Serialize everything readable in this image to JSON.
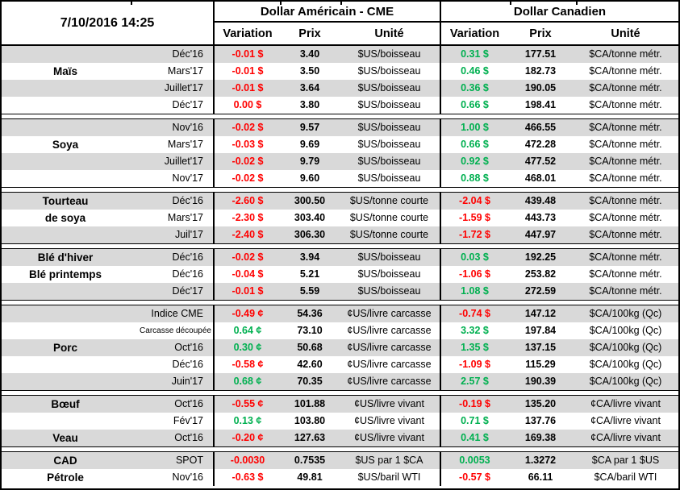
{
  "colors": {
    "negative": "#ff0000",
    "positive": "#00b050",
    "stripe": "#d9d9d9"
  },
  "chart_data": {
    "type": "table",
    "timestamp": "7/10/2016 14:25",
    "section_us": "Dollar Américain - CME",
    "section_ca": "Dollar Canadien",
    "columns": {
      "variation": "Variation",
      "prix": "Prix",
      "unite": "Unité"
    },
    "groups": [
      {
        "id": "mais",
        "rows": [
          {
            "label": "",
            "month": "Déc'16",
            "us_var": "-0.01 $",
            "us_sign": "neg",
            "us_prix": "3.40",
            "us_unit": "$US/boisseau",
            "ca_var": "0.31 $",
            "ca_sign": "pos",
            "ca_prix": "177.51",
            "ca_unit": "$CA/tonne métr."
          },
          {
            "label": "Maïs",
            "month": "Mars'17",
            "us_var": "-0.01 $",
            "us_sign": "neg",
            "us_prix": "3.50",
            "us_unit": "$US/boisseau",
            "ca_var": "0.46 $",
            "ca_sign": "pos",
            "ca_prix": "182.73",
            "ca_unit": "$CA/tonne métr."
          },
          {
            "label": "",
            "month": "Juillet'17",
            "us_var": "-0.01 $",
            "us_sign": "neg",
            "us_prix": "3.64",
            "us_unit": "$US/boisseau",
            "ca_var": "0.36 $",
            "ca_sign": "pos",
            "ca_prix": "190.05",
            "ca_unit": "$CA/tonne métr."
          },
          {
            "label": "",
            "month": "Déc'17",
            "us_var": "0.00 $",
            "us_sign": "neg",
            "us_prix": "3.80",
            "us_unit": "$US/boisseau",
            "ca_var": "0.66 $",
            "ca_sign": "pos",
            "ca_prix": "198.41",
            "ca_unit": "$CA/tonne métr."
          }
        ]
      },
      {
        "id": "soya",
        "rows": [
          {
            "label": "",
            "month": "Nov'16",
            "us_var": "-0.02 $",
            "us_sign": "neg",
            "us_prix": "9.57",
            "us_unit": "$US/boisseau",
            "ca_var": "1.00 $",
            "ca_sign": "pos",
            "ca_prix": "466.55",
            "ca_unit": "$CA/tonne métr."
          },
          {
            "label": "Soya",
            "month": "Mars'17",
            "us_var": "-0.03 $",
            "us_sign": "neg",
            "us_prix": "9.69",
            "us_unit": "$US/boisseau",
            "ca_var": "0.66 $",
            "ca_sign": "pos",
            "ca_prix": "472.28",
            "ca_unit": "$CA/tonne métr."
          },
          {
            "label": "",
            "month": "Juillet'17",
            "us_var": "-0.02 $",
            "us_sign": "neg",
            "us_prix": "9.79",
            "us_unit": "$US/boisseau",
            "ca_var": "0.92 $",
            "ca_sign": "pos",
            "ca_prix": "477.52",
            "ca_unit": "$CA/tonne métr."
          },
          {
            "label": "",
            "month": "Nov'17",
            "us_var": "-0.02 $",
            "us_sign": "neg",
            "us_prix": "9.60",
            "us_unit": "$US/boisseau",
            "ca_var": "0.88 $",
            "ca_sign": "pos",
            "ca_prix": "468.01",
            "ca_unit": "$CA/tonne métr."
          }
        ]
      },
      {
        "id": "tourteau-de-soya",
        "rows": [
          {
            "label": "Tourteau",
            "month": "Déc'16",
            "us_var": "-2.60 $",
            "us_sign": "neg",
            "us_prix": "300.50",
            "us_unit": "$US/tonne courte",
            "ca_var": "-2.04 $",
            "ca_sign": "neg",
            "ca_prix": "439.48",
            "ca_unit": "$CA/tonne métr."
          },
          {
            "label": "de soya",
            "month": "Mars'17",
            "us_var": "-2.30 $",
            "us_sign": "neg",
            "us_prix": "303.40",
            "us_unit": "$US/tonne courte",
            "ca_var": "-1.59 $",
            "ca_sign": "neg",
            "ca_prix": "443.73",
            "ca_unit": "$CA/tonne métr."
          },
          {
            "label": "",
            "month": "Juil'17",
            "us_var": "-2.40 $",
            "us_sign": "neg",
            "us_prix": "306.30",
            "us_unit": "$US/tonne courte",
            "ca_var": "-1.72 $",
            "ca_sign": "neg",
            "ca_prix": "447.97",
            "ca_unit": "$CA/tonne métr."
          }
        ]
      },
      {
        "id": "ble",
        "rows": [
          {
            "label": "Blé d'hiver",
            "month": "Déc'16",
            "us_var": "-0.02 $",
            "us_sign": "neg",
            "us_prix": "3.94",
            "us_unit": "$US/boisseau",
            "ca_var": "0.03 $",
            "ca_sign": "pos",
            "ca_prix": "192.25",
            "ca_unit": "$CA/tonne métr."
          },
          {
            "label": "Blé printemps",
            "month": "Déc'16",
            "us_var": "-0.04 $",
            "us_sign": "neg",
            "us_prix": "5.21",
            "us_unit": "$US/boisseau",
            "ca_var": "-1.06 $",
            "ca_sign": "neg",
            "ca_prix": "253.82",
            "ca_unit": "$CA/tonne métr."
          },
          {
            "label": "",
            "month": "Déc'17",
            "us_var": "-0.01 $",
            "us_sign": "neg",
            "us_prix": "5.59",
            "us_unit": "$US/boisseau",
            "ca_var": "1.08 $",
            "ca_sign": "pos",
            "ca_prix": "272.59",
            "ca_unit": "$CA/tonne métr."
          }
        ]
      },
      {
        "id": "porc",
        "rows": [
          {
            "label": "",
            "month": "Indice CME",
            "us_var": "-0.49 ¢",
            "us_sign": "neg",
            "us_prix": "54.36",
            "us_unit": "¢US/livre carcasse",
            "ca_var": "-0.74 $",
            "ca_sign": "neg",
            "ca_prix": "147.12",
            "ca_unit": "$CA/100kg (Qc)"
          },
          {
            "label": "",
            "month": "Carcasse découpée",
            "small": true,
            "us_var": "0.64 ¢",
            "us_sign": "pos",
            "us_prix": "73.10",
            "us_unit": "¢US/livre carcasse",
            "ca_var": "3.32 $",
            "ca_sign": "pos",
            "ca_prix": "197.84",
            "ca_unit": "$CA/100kg (Qc)"
          },
          {
            "label": "Porc",
            "month": "Oct'16",
            "us_var": "0.30 ¢",
            "us_sign": "pos",
            "us_prix": "50.68",
            "us_unit": "¢US/livre carcasse",
            "ca_var": "1.35 $",
            "ca_sign": "pos",
            "ca_prix": "137.15",
            "ca_unit": "$CA/100kg (Qc)"
          },
          {
            "label": "",
            "month": "Déc'16",
            "us_var": "-0.58 ¢",
            "us_sign": "neg",
            "us_prix": "42.60",
            "us_unit": "¢US/livre carcasse",
            "ca_var": "-1.09 $",
            "ca_sign": "neg",
            "ca_prix": "115.29",
            "ca_unit": "$CA/100kg (Qc)"
          },
          {
            "label": "",
            "month": "Juin'17",
            "us_var": "0.68 ¢",
            "us_sign": "pos",
            "us_prix": "70.35",
            "us_unit": "¢US/livre carcasse",
            "ca_var": "2.57 $",
            "ca_sign": "pos",
            "ca_prix": "190.39",
            "ca_unit": "$CA/100kg (Qc)"
          }
        ]
      },
      {
        "id": "boeuf-veau",
        "rows": [
          {
            "label": "Bœuf",
            "month": "Oct'16",
            "us_var": "-0.55 ¢",
            "us_sign": "neg",
            "us_prix": "101.88",
            "us_unit": "¢US/livre vivant",
            "ca_var": "-0.19 $",
            "ca_sign": "neg",
            "ca_prix": "135.20",
            "ca_unit": "¢CA/livre vivant"
          },
          {
            "label": "",
            "month": "Fév'17",
            "us_var": "0.13 ¢",
            "us_sign": "pos",
            "us_prix": "103.80",
            "us_unit": "¢US/livre vivant",
            "ca_var": "0.71 $",
            "ca_sign": "pos",
            "ca_prix": "137.76",
            "ca_unit": "¢CA/livre vivant"
          },
          {
            "label": "Veau",
            "month": "Oct'16",
            "us_var": "-0.20 ¢",
            "us_sign": "neg",
            "us_prix": "127.63",
            "us_unit": "¢US/livre vivant",
            "ca_var": "0.41 $",
            "ca_sign": "pos",
            "ca_prix": "169.38",
            "ca_unit": "¢CA/livre vivant"
          }
        ]
      },
      {
        "id": "cad-petrole",
        "rows": [
          {
            "label": "CAD",
            "month": "SPOT",
            "us_var": "-0.0030",
            "us_sign": "neg",
            "us_prix": "0.7535",
            "us_unit": "$US par 1 $CA",
            "ca_var": "0.0053",
            "ca_sign": "pos",
            "ca_prix": "1.3272",
            "ca_unit": "$CA par 1 $US"
          },
          {
            "label": "Pétrole",
            "month": "Nov'16",
            "us_var": "-0.63 $",
            "us_sign": "neg",
            "us_prix": "49.81",
            "us_unit": "$US/baril WTI",
            "ca_var": "-0.57 $",
            "ca_sign": "neg",
            "ca_prix": "66.11",
            "ca_unit": "$CA/baril WTI"
          }
        ]
      }
    ]
  }
}
